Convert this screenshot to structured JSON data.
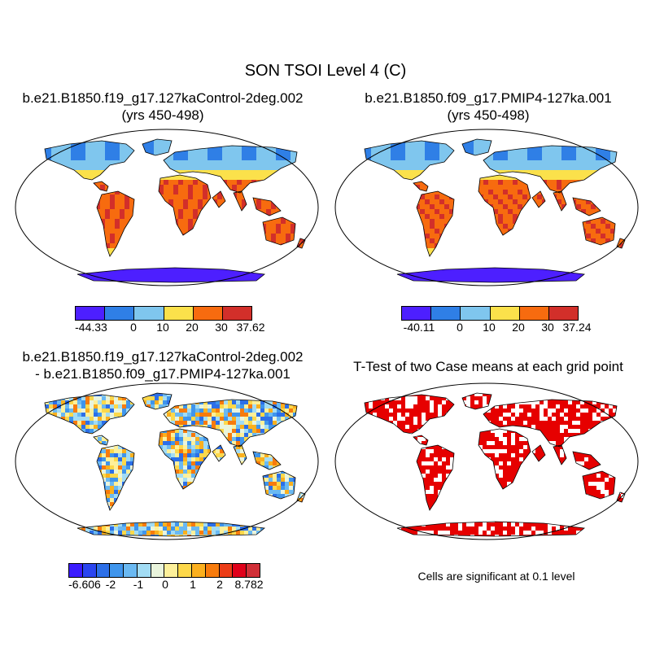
{
  "figure": {
    "title": "SON TSOI Level 4 (C)",
    "note": "Cells are significant at 0.1 level"
  },
  "panels": [
    {
      "id": "control",
      "title_line1": "b.e21.B1850.f19_g17.127kaControl-2deg.002",
      "title_line2": "(yrs 450-498)",
      "colorbar": {
        "colors": [
          "#4d1fff",
          "#2f7fe6",
          "#7fc6ee",
          "#fbe14b",
          "#f76b0f",
          "#d22f2a"
        ],
        "tick_labels": [
          "-44.33",
          "0",
          "10",
          "20",
          "30",
          "37.62"
        ]
      }
    },
    {
      "id": "pmip",
      "title_line1": "b.e21.B1850.f09_g17.PMIP4-127ka.001",
      "title_line2": "(yrs 450-498)",
      "colorbar": {
        "colors": [
          "#4d1fff",
          "#2f7fe6",
          "#7fc6ee",
          "#fbe14b",
          "#f76b0f",
          "#d22f2a"
        ],
        "tick_labels": [
          "-40.11",
          "0",
          "10",
          "20",
          "30",
          "37.24"
        ]
      }
    },
    {
      "id": "difference",
      "title_line1": "b.e21.B1850.f19_g17.127kaControl-2deg.002",
      "title_line2": "- b.e21.B1850.f09_g17.PMIP4-127ka.001",
      "colorbar": {
        "colors": [
          "#3b1cff",
          "#2a45f0",
          "#2c6fe8",
          "#3f95ec",
          "#6ab9f2",
          "#a2dcf4",
          "#e9f4dc",
          "#fdf09a",
          "#fdd84a",
          "#fbb01e",
          "#f77b0d",
          "#ec3d17",
          "#e0001a",
          "#d12f37"
        ],
        "tick_labels": [
          "-6.606",
          "-2",
          "-1",
          "0",
          "1",
          "2",
          "8.782"
        ]
      }
    },
    {
      "id": "ttest",
      "title_line1": "T-Test of two Case means at each grid point",
      "significant_color": "#e60000"
    }
  ]
}
